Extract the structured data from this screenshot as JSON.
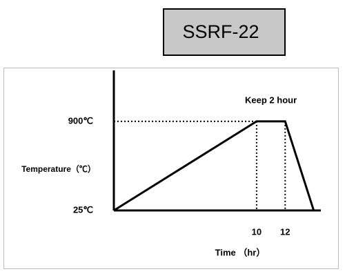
{
  "chart_data": {
    "type": "line",
    "title": "SSRF-22",
    "annotation": "Keep 2 hour",
    "y_label": "Temperature（℃）",
    "x_label": "Time （hr）",
    "x": [
      0,
      10,
      12,
      14
    ],
    "series": [
      {
        "color": "#000000",
        "values": [
          25,
          900,
          900,
          25
        ]
      }
    ],
    "xlim": [
      0,
      14.5
    ],
    "ylim": [
      25,
      1400
    ],
    "xticks": [
      10,
      12
    ],
    "yticks": [
      {
        "value": 25,
        "label": "25℃"
      },
      {
        "value": 900,
        "label": "900℃"
      }
    ]
  }
}
